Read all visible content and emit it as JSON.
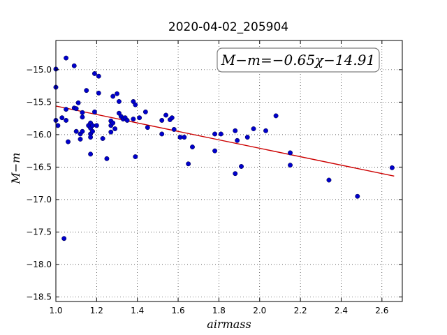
{
  "chart_data": {
    "type": "scatter",
    "title": "2020-04-02_205904",
    "xlabel": "airmass",
    "ylabel": "M−m",
    "annotation": "M−m=−0.65χ−14.91",
    "xlim": [
      1.0,
      2.7
    ],
    "ylim": [
      -18.57,
      -14.55
    ],
    "x_ticks": [
      1.0,
      1.2,
      1.4,
      1.6,
      1.8,
      2.0,
      2.2,
      2.4,
      2.6
    ],
    "x_tick_labels": [
      "1.0",
      "1.2",
      "1.4",
      "1.6",
      "1.8",
      "2.0",
      "2.2",
      "2.4",
      "2.6"
    ],
    "y_ticks": [
      -15.0,
      -15.5,
      -16.0,
      -16.5,
      -17.0,
      -17.5,
      -18.0,
      -18.5
    ],
    "y_tick_labels": [
      "−15.0",
      "−15.5",
      "−16.0",
      "−16.5",
      "−17.0",
      "−17.5",
      "−18.0",
      "−18.5"
    ],
    "grid": true,
    "point_color": "#0000cc",
    "fit_color": "#cc0000",
    "fit_line": {
      "slope": -0.65,
      "intercept": -14.91,
      "x_range": [
        1.0,
        2.66
      ]
    },
    "points": [
      [
        1.0,
        -14.99
      ],
      [
        1.0,
        -15.27
      ],
      [
        1.0,
        -15.78
      ],
      [
        1.01,
        -15.86
      ],
      [
        1.03,
        -15.74
      ],
      [
        1.04,
        -17.6
      ],
      [
        1.05,
        -14.82
      ],
      [
        1.05,
        -15.61
      ],
      [
        1.05,
        -15.78
      ],
      [
        1.06,
        -16.11
      ],
      [
        1.09,
        -14.94
      ],
      [
        1.09,
        -15.59
      ],
      [
        1.1,
        -15.6
      ],
      [
        1.1,
        -15.95
      ],
      [
        1.11,
        -15.51
      ],
      [
        1.12,
        -15.99
      ],
      [
        1.12,
        -16.07
      ],
      [
        1.13,
        -15.66
      ],
      [
        1.13,
        -15.73
      ],
      [
        1.13,
        -15.95
      ],
      [
        1.15,
        -15.32
      ],
      [
        1.16,
        -15.86
      ],
      [
        1.17,
        -15.82
      ],
      [
        1.17,
        -15.9
      ],
      [
        1.17,
        -15.99
      ],
      [
        1.17,
        -16.04
      ],
      [
        1.17,
        -16.3
      ],
      [
        1.18,
        -15.86
      ],
      [
        1.18,
        -15.95
      ],
      [
        1.19,
        -15.06
      ],
      [
        1.19,
        -15.65
      ],
      [
        1.2,
        -15.86
      ],
      [
        1.21,
        -15.1
      ],
      [
        1.21,
        -15.36
      ],
      [
        1.23,
        -16.06
      ],
      [
        1.25,
        -16.37
      ],
      [
        1.27,
        -15.79
      ],
      [
        1.27,
        -15.86
      ],
      [
        1.27,
        -15.96
      ],
      [
        1.28,
        -15.41
      ],
      [
        1.28,
        -15.82
      ],
      [
        1.29,
        -15.91
      ],
      [
        1.3,
        -15.37
      ],
      [
        1.31,
        -15.49
      ],
      [
        1.31,
        -15.67
      ],
      [
        1.32,
        -15.72
      ],
      [
        1.33,
        -15.76
      ],
      [
        1.34,
        -15.74
      ],
      [
        1.35,
        -15.78
      ],
      [
        1.38,
        -15.76
      ],
      [
        1.38,
        -15.49
      ],
      [
        1.39,
        -15.54
      ],
      [
        1.39,
        -16.34
      ],
      [
        1.41,
        -15.74
      ],
      [
        1.44,
        -15.65
      ],
      [
        1.45,
        -15.89
      ],
      [
        1.52,
        -15.99
      ],
      [
        1.52,
        -15.78
      ],
      [
        1.54,
        -15.7
      ],
      [
        1.56,
        -15.77
      ],
      [
        1.57,
        -15.74
      ],
      [
        1.58,
        -15.92
      ],
      [
        1.61,
        -16.04
      ],
      [
        1.63,
        -16.04
      ],
      [
        1.65,
        -16.45
      ],
      [
        1.67,
        -16.19
      ],
      [
        1.78,
        -16.25
      ],
      [
        1.78,
        -15.99
      ],
      [
        1.81,
        -15.99
      ],
      [
        1.88,
        -15.94
      ],
      [
        1.88,
        -16.6
      ],
      [
        1.89,
        -16.09
      ],
      [
        1.91,
        -16.49
      ],
      [
        1.94,
        -16.04
      ],
      [
        1.97,
        -15.91
      ],
      [
        2.03,
        -15.94
      ],
      [
        2.08,
        -15.71
      ],
      [
        2.15,
        -16.28
      ],
      [
        2.15,
        -16.47
      ],
      [
        2.34,
        -16.7
      ],
      [
        2.48,
        -16.95
      ],
      [
        2.65,
        -16.51
      ]
    ]
  }
}
